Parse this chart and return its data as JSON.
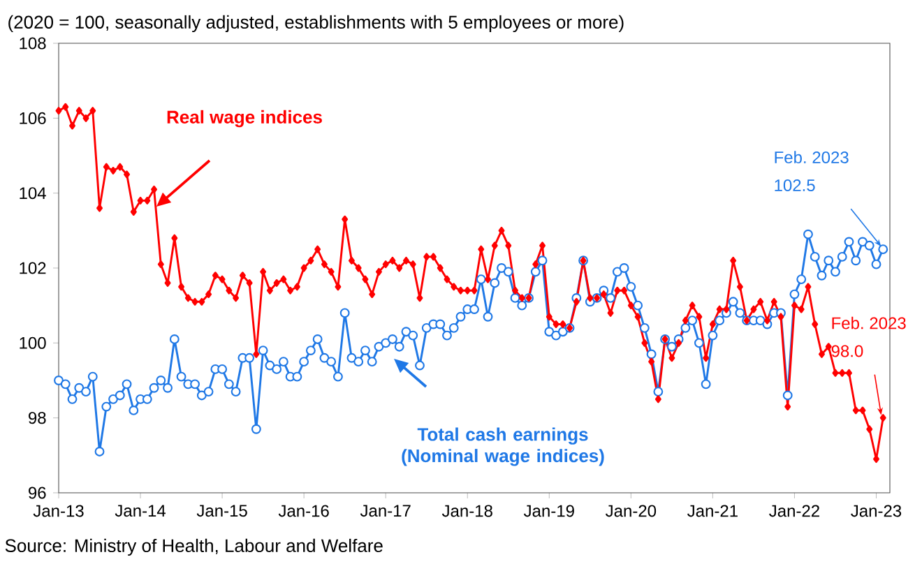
{
  "chart_data": {
    "type": "line",
    "title": "(2020 = 100, seasonally adjusted, establishments with 5 employees or more)",
    "x": [
      "2013-01",
      "2013-02",
      "2013-03",
      "2013-04",
      "2013-05",
      "2013-06",
      "2013-07",
      "2013-08",
      "2013-09",
      "2013-10",
      "2013-11",
      "2013-12",
      "2014-01",
      "2014-02",
      "2014-03",
      "2014-04",
      "2014-05",
      "2014-06",
      "2014-07",
      "2014-08",
      "2014-09",
      "2014-10",
      "2014-11",
      "2014-12",
      "2015-01",
      "2015-02",
      "2015-03",
      "2015-04",
      "2015-05",
      "2015-06",
      "2015-07",
      "2015-08",
      "2015-09",
      "2015-10",
      "2015-11",
      "2015-12",
      "2016-01",
      "2016-02",
      "2016-03",
      "2016-04",
      "2016-05",
      "2016-06",
      "2016-07",
      "2016-08",
      "2016-09",
      "2016-10",
      "2016-11",
      "2016-12",
      "2017-01",
      "2017-02",
      "2017-03",
      "2017-04",
      "2017-05",
      "2017-06",
      "2017-07",
      "2017-08",
      "2017-09",
      "2017-10",
      "2017-11",
      "2017-12",
      "2018-01",
      "2018-02",
      "2018-03",
      "2018-04",
      "2018-05",
      "2018-06",
      "2018-07",
      "2018-08",
      "2018-09",
      "2018-10",
      "2018-11",
      "2018-12",
      "2019-01",
      "2019-02",
      "2019-03",
      "2019-04",
      "2019-05",
      "2019-06",
      "2019-07",
      "2019-08",
      "2019-09",
      "2019-10",
      "2019-11",
      "2019-12",
      "2020-01",
      "2020-02",
      "2020-03",
      "2020-04",
      "2020-05",
      "2020-06",
      "2020-07",
      "2020-08",
      "2020-09",
      "2020-10",
      "2020-11",
      "2020-12",
      "2021-01",
      "2021-02",
      "2021-03",
      "2021-04",
      "2021-05",
      "2021-06",
      "2021-07",
      "2021-08",
      "2021-09",
      "2021-10",
      "2021-11",
      "2021-12",
      "2022-01",
      "2022-02",
      "2022-03",
      "2022-04",
      "2022-05",
      "2022-06",
      "2022-07",
      "2022-08",
      "2022-09",
      "2022-10",
      "2022-11",
      "2022-12",
      "2023-01",
      "2023-02"
    ],
    "series": [
      {
        "name": "Real wage indices",
        "color": "#ff0000",
        "marker": "diamond",
        "values": [
          106.2,
          106.3,
          105.8,
          106.2,
          106.0,
          106.2,
          103.6,
          104.7,
          104.6,
          104.7,
          104.5,
          103.5,
          103.8,
          103.8,
          104.1,
          102.1,
          101.6,
          102.8,
          101.5,
          101.2,
          101.1,
          101.1,
          101.3,
          101.8,
          101.7,
          101.4,
          101.2,
          101.8,
          101.6,
          99.7,
          101.9,
          101.4,
          101.6,
          101.7,
          101.4,
          101.5,
          102.0,
          102.2,
          102.5,
          102.1,
          101.9,
          101.5,
          103.3,
          102.2,
          102.0,
          101.7,
          101.3,
          101.9,
          102.1,
          102.2,
          102.0,
          102.2,
          102.1,
          101.2,
          102.3,
          102.3,
          102.0,
          101.7,
          101.5,
          101.4,
          101.4,
          101.4,
          102.5,
          101.7,
          102.6,
          103.0,
          102.6,
          101.4,
          101.2,
          101.2,
          102.1,
          102.6,
          100.7,
          100.5,
          100.5,
          100.4,
          101.1,
          102.2,
          101.2,
          101.2,
          101.3,
          100.8,
          101.4,
          101.4,
          101.0,
          100.7,
          100.0,
          99.5,
          98.5,
          100.1,
          99.6,
          100.0,
          100.6,
          101.0,
          100.7,
          99.6,
          100.5,
          100.9,
          100.9,
          102.2,
          101.5,
          100.6,
          100.9,
          101.1,
          100.6,
          101.1,
          100.7,
          98.3,
          101.0,
          100.9,
          101.5,
          100.5,
          99.7,
          99.9,
          99.2,
          99.2,
          99.2,
          98.2,
          98.2,
          97.7,
          96.9,
          98.0
        ]
      },
      {
        "name": "Total cash earnings (Nominal wage indices)",
        "color": "#1f78e6",
        "marker": "circle",
        "values": [
          99.0,
          98.9,
          98.5,
          98.8,
          98.7,
          99.1,
          97.1,
          98.3,
          98.5,
          98.6,
          98.9,
          98.2,
          98.5,
          98.5,
          98.8,
          99.0,
          98.8,
          100.1,
          99.1,
          98.9,
          98.9,
          98.6,
          98.7,
          99.3,
          99.3,
          98.9,
          98.7,
          99.6,
          99.6,
          97.7,
          99.8,
          99.4,
          99.3,
          99.5,
          99.1,
          99.1,
          99.5,
          99.8,
          100.1,
          99.6,
          99.5,
          99.1,
          100.8,
          99.6,
          99.5,
          99.8,
          99.5,
          99.9,
          100.0,
          100.1,
          99.9,
          100.3,
          100.2,
          99.4,
          100.4,
          100.5,
          100.5,
          100.2,
          100.4,
          100.7,
          100.9,
          100.9,
          101.7,
          100.7,
          101.6,
          102.0,
          101.9,
          101.2,
          101.0,
          101.2,
          101.9,
          102.2,
          100.3,
          100.2,
          100.3,
          100.4,
          101.2,
          102.2,
          101.1,
          101.2,
          101.4,
          101.2,
          101.9,
          102.0,
          101.5,
          101.0,
          100.4,
          99.7,
          98.7,
          100.1,
          99.9,
          100.1,
          100.4,
          100.6,
          100.0,
          98.9,
          100.2,
          100.6,
          100.8,
          101.1,
          100.8,
          100.6,
          100.6,
          100.6,
          100.5,
          100.8,
          100.8,
          98.6,
          101.3,
          101.7,
          102.9,
          102.3,
          101.8,
          102.2,
          101.9,
          102.3,
          102.7,
          102.2,
          102.7,
          102.6,
          102.1,
          102.5
        ]
      }
    ],
    "xlim": [
      "2013-01",
      "2023-03"
    ],
    "xticks": [
      {
        "value": "2013-01",
        "label": "Jan-13"
      },
      {
        "value": "2014-01",
        "label": "Jan-14"
      },
      {
        "value": "2015-01",
        "label": "Jan-15"
      },
      {
        "value": "2016-01",
        "label": "Jan-16"
      },
      {
        "value": "2017-01",
        "label": "Jan-17"
      },
      {
        "value": "2018-01",
        "label": "Jan-18"
      },
      {
        "value": "2019-01",
        "label": "Jan-19"
      },
      {
        "value": "2020-01",
        "label": "Jan-20"
      },
      {
        "value": "2021-01",
        "label": "Jan-21"
      },
      {
        "value": "2022-01",
        "label": "Jan-22"
      },
      {
        "value": "2023-01",
        "label": "Jan-23"
      }
    ],
    "ylim": [
      96,
      108
    ],
    "yticks": [
      96,
      98,
      100,
      102,
      104,
      106,
      108
    ],
    "annotations": [
      {
        "text": "Feb. 2023 102.5",
        "x": "2023-02",
        "y": 102.5
      },
      {
        "text": "Feb. 2023 98.0",
        "x": "2023-02",
        "y": 98.0
      },
      "Source: Ministry of Health, Labour and Welfare"
    ]
  }
}
